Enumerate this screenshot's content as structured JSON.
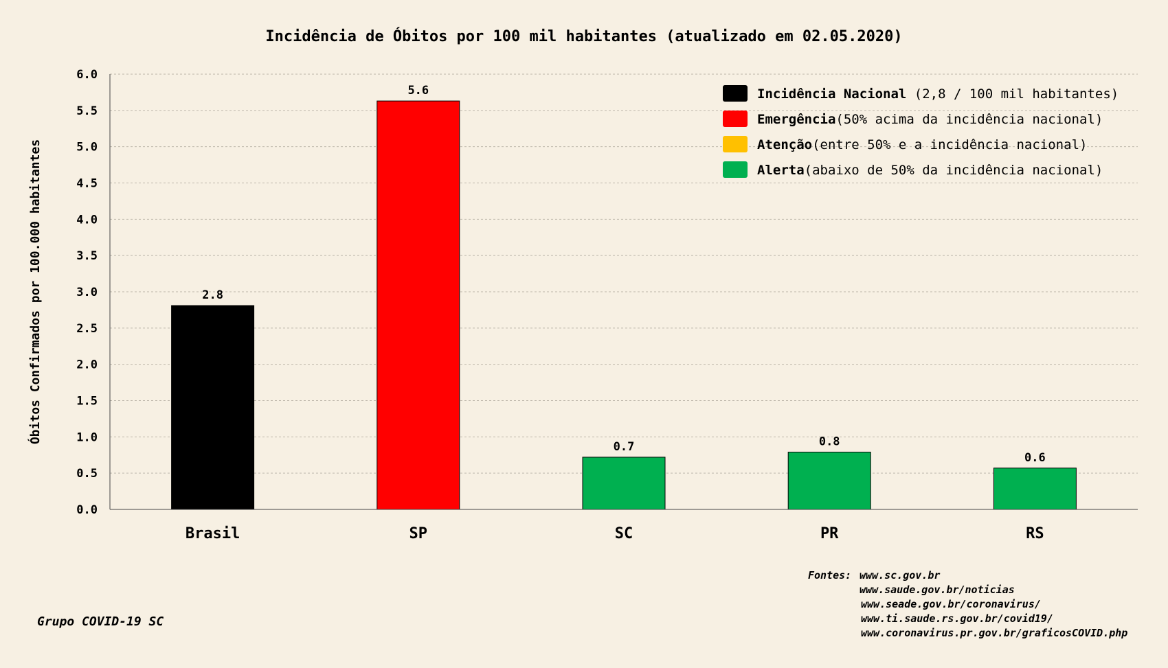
{
  "chart_data": {
    "type": "bar",
    "title": "Incidência de Óbitos por 100 mil habitantes (atualizado em 02.05.2020)",
    "ylabel": "Óbitos Confirmados por 100.000 habitantes",
    "xlabel": "",
    "ylim": [
      0,
      6
    ],
    "yticks": [
      "0.0",
      "0.5",
      "1.0",
      "1.5",
      "2.0",
      "2.5",
      "3.0",
      "3.5",
      "4.0",
      "4.5",
      "5.0",
      "5.5",
      "6.0"
    ],
    "grid": true,
    "legend_position": "top-right",
    "categories": [
      "Brasil",
      "SP",
      "SC",
      "PR",
      "RS"
    ],
    "values": [
      2.81,
      5.63,
      0.72,
      0.79,
      0.57
    ],
    "value_labels": [
      "2.8",
      "5.6",
      "0.7",
      "0.8",
      "0.6"
    ],
    "bar_colors": [
      "#000000",
      "#ff0000",
      "#00b050",
      "#00b050",
      "#00b050"
    ],
    "legend": [
      {
        "bold": "Incidência Nacional",
        "rest": " (2,8 / 100 mil habitantes)",
        "color": "#000000"
      },
      {
        "bold": "Emergência",
        "rest": "(50% acima da incidência nacional)",
        "color": "#ff0000"
      },
      {
        "bold": "Atenção",
        "rest": "(entre 50% e a incidência nacional)",
        "color": "#ffc000"
      },
      {
        "bold": "Alerta",
        "rest": "(abaixo de 50% da incidência nacional)",
        "color": "#00b050"
      }
    ]
  },
  "sources": {
    "label": "Fontes:",
    "lines": [
      "www.sc.gov.br",
      "www.saude.gov.br/noticias",
      "www.seade.gov.br/coronavirus/",
      "www.ti.saude.rs.gov.br/covid19/",
      "www.coronavirus.pr.gov.br/graficosCOVID.php"
    ]
  },
  "credit": "Grupo COVID-19 SC"
}
